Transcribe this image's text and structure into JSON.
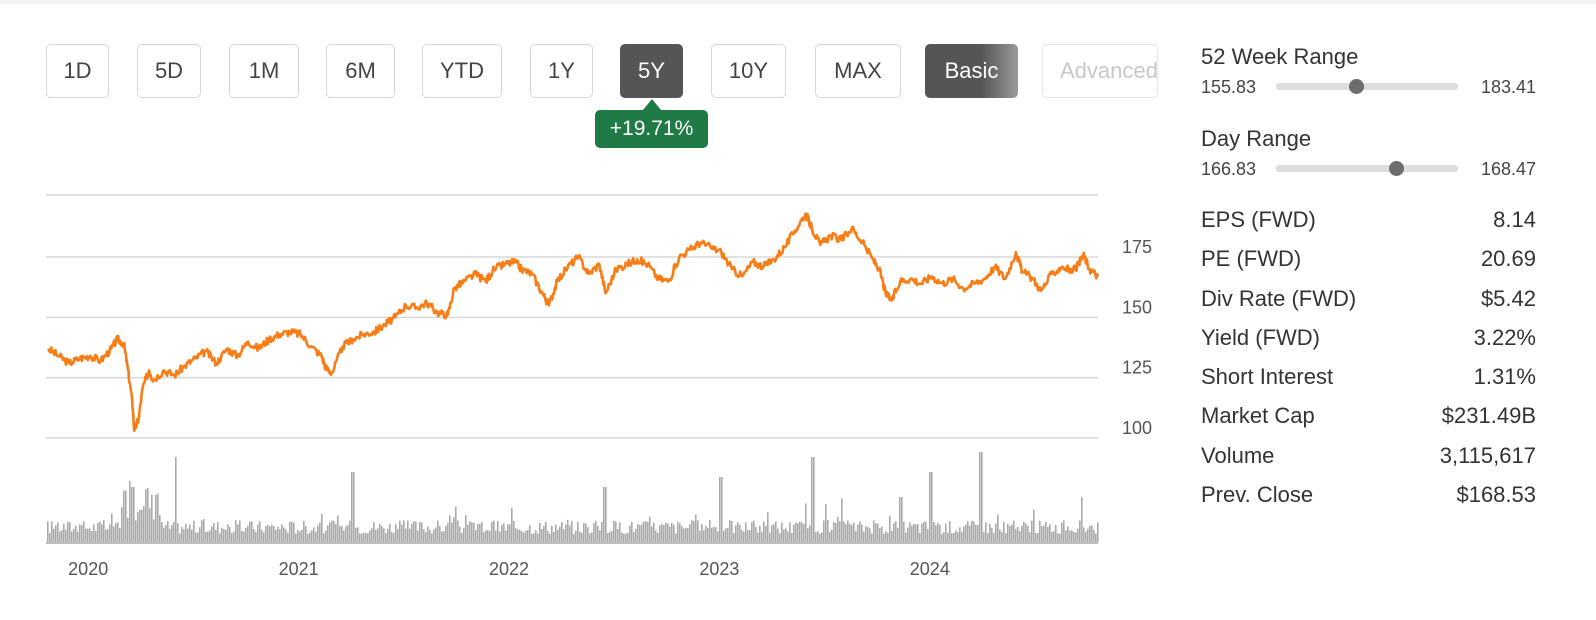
{
  "periods": [
    "1D",
    "5D",
    "1M",
    "6M",
    "YTD",
    "1Y",
    "5Y",
    "10Y",
    "MAX"
  ],
  "active_period": "5Y",
  "modes": {
    "basic": "Basic",
    "advanced": "Advanced"
  },
  "active_mode": "Basic",
  "change_badge": "+19.71%",
  "colors": {
    "price_line": "#f97d16",
    "volume": "#aaaaaa",
    "badge": "#1f7a45",
    "active_button": "#555555"
  },
  "week52_range": {
    "label": "52 Week Range",
    "low": "155.83",
    "high": "183.41",
    "position": 0.44
  },
  "day_range": {
    "label": "Day Range",
    "low": "166.83",
    "high": "168.47",
    "position": 0.66
  },
  "stats": [
    {
      "label": "EPS (FWD)",
      "value": "8.14"
    },
    {
      "label": "PE (FWD)",
      "value": "20.69"
    },
    {
      "label": "Div Rate (FWD)",
      "value": "$5.42"
    },
    {
      "label": "Yield (FWD)",
      "value": "3.22%"
    },
    {
      "label": "Short Interest",
      "value": "1.31%"
    },
    {
      "label": "Market Cap",
      "value": "$231.49B"
    },
    {
      "label": "Volume",
      "value": "3,115,617"
    },
    {
      "label": "Prev. Close",
      "value": "$168.53"
    }
  ],
  "chart_data": {
    "type": "line",
    "x_start": "2019-10",
    "x_end": "2024-10",
    "ylim": [
      90,
      200
    ],
    "y_ticks": [
      "100",
      "125",
      "150",
      "175"
    ],
    "y_tick_values": [
      100,
      125,
      150,
      175
    ],
    "x_ticks": [
      {
        "label": "2020",
        "date": 2020.0
      },
      {
        "label": "2021",
        "date": 2021.0
      },
      {
        "label": "2022",
        "date": 2022.0
      },
      {
        "label": "2023",
        "date": 2023.0
      },
      {
        "label": "2024",
        "date": 2024.0
      }
    ],
    "grid": true,
    "series": [
      {
        "points": [
          [
            2019.8,
            137
          ],
          [
            2019.85,
            134
          ],
          [
            2019.9,
            131
          ],
          [
            2019.95,
            133
          ],
          [
            2020.0,
            134
          ],
          [
            2020.05,
            132
          ],
          [
            2020.1,
            137
          ],
          [
            2020.13,
            141
          ],
          [
            2020.16,
            139
          ],
          [
            2020.18,
            128
          ],
          [
            2020.2,
            115
          ],
          [
            2020.21,
            103
          ],
          [
            2020.23,
            108
          ],
          [
            2020.25,
            121
          ],
          [
            2020.28,
            128
          ],
          [
            2020.3,
            124
          ],
          [
            2020.35,
            128
          ],
          [
            2020.4,
            126
          ],
          [
            2020.45,
            130
          ],
          [
            2020.5,
            133
          ],
          [
            2020.55,
            136
          ],
          [
            2020.6,
            131
          ],
          [
            2020.65,
            137
          ],
          [
            2020.7,
            134
          ],
          [
            2020.75,
            140
          ],
          [
            2020.8,
            137
          ],
          [
            2020.85,
            141
          ],
          [
            2020.9,
            143
          ],
          [
            2020.95,
            144
          ],
          [
            2021.0,
            143
          ],
          [
            2021.05,
            138
          ],
          [
            2021.1,
            134
          ],
          [
            2021.12,
            129
          ],
          [
            2021.15,
            127
          ],
          [
            2021.2,
            138
          ],
          [
            2021.25,
            141
          ],
          [
            2021.3,
            143
          ],
          [
            2021.35,
            144
          ],
          [
            2021.4,
            147
          ],
          [
            2021.45,
            150
          ],
          [
            2021.5,
            155
          ],
          [
            2021.55,
            154
          ],
          [
            2021.6,
            156
          ],
          [
            2021.65,
            152
          ],
          [
            2021.7,
            151
          ],
          [
            2021.73,
            162
          ],
          [
            2021.78,
            165
          ],
          [
            2021.83,
            168
          ],
          [
            2021.88,
            165
          ],
          [
            2021.92,
            170
          ],
          [
            2021.97,
            172
          ],
          [
            2022.02,
            173
          ],
          [
            2022.05,
            170
          ],
          [
            2022.1,
            168
          ],
          [
            2022.15,
            160
          ],
          [
            2022.18,
            155
          ],
          [
            2022.22,
            165
          ],
          [
            2022.27,
            171
          ],
          [
            2022.32,
            175
          ],
          [
            2022.37,
            168
          ],
          [
            2022.42,
            172
          ],
          [
            2022.45,
            160
          ],
          [
            2022.5,
            170
          ],
          [
            2022.55,
            172
          ],
          [
            2022.6,
            174
          ],
          [
            2022.65,
            172
          ],
          [
            2022.7,
            166
          ],
          [
            2022.75,
            165
          ],
          [
            2022.8,
            175
          ],
          [
            2022.85,
            178
          ],
          [
            2022.9,
            181
          ],
          [
            2022.95,
            179
          ],
          [
            2023.0,
            177
          ],
          [
            2023.05,
            170
          ],
          [
            2023.1,
            167
          ],
          [
            2023.15,
            173
          ],
          [
            2023.2,
            171
          ],
          [
            2023.25,
            174
          ],
          [
            2023.3,
            179
          ],
          [
            2023.35,
            186
          ],
          [
            2023.4,
            193
          ],
          [
            2023.43,
            187
          ],
          [
            2023.47,
            180
          ],
          [
            2023.52,
            184
          ],
          [
            2023.57,
            182
          ],
          [
            2023.62,
            187
          ],
          [
            2023.67,
            181
          ],
          [
            2023.72,
            174
          ],
          [
            2023.75,
            170
          ],
          [
            2023.78,
            160
          ],
          [
            2023.81,
            157
          ],
          [
            2023.85,
            165
          ],
          [
            2023.9,
            166
          ],
          [
            2023.95,
            164
          ],
          [
            2024.0,
            167
          ],
          [
            2024.05,
            164
          ],
          [
            2024.1,
            166
          ],
          [
            2024.15,
            162
          ],
          [
            2024.2,
            164
          ],
          [
            2024.25,
            166
          ],
          [
            2024.3,
            171
          ],
          [
            2024.35,
            166
          ],
          [
            2024.4,
            177
          ],
          [
            2024.43,
            169
          ],
          [
            2024.48,
            166
          ],
          [
            2024.52,
            161
          ],
          [
            2024.57,
            168
          ],
          [
            2024.62,
            171
          ],
          [
            2024.67,
            169
          ],
          [
            2024.7,
            172
          ],
          [
            2024.72,
            176
          ],
          [
            2024.75,
            170
          ],
          [
            2024.79,
            167
          ]
        ]
      }
    ]
  }
}
